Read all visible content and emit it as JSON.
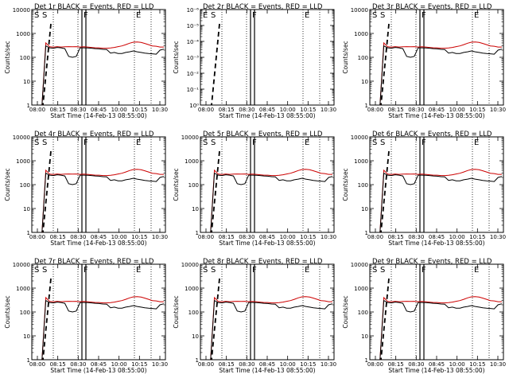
{
  "colors": {
    "events": "#000000",
    "lld": "#cc0000",
    "background": "#ffffff"
  },
  "chart_data": [
    {
      "type": "line",
      "title": "Det 1r BLACK = Events, RED = LLD",
      "xlabel": "Start Time (14-Feb-13 08:55:00)",
      "ylabel": "Counts/sec",
      "yscale": "log",
      "ylim": [
        1,
        10000
      ],
      "yticks": [
        "1",
        "10",
        "100",
        "1000",
        "10000"
      ],
      "xticks": [
        "08:00",
        "08:15",
        "08:30",
        "08:45",
        "10:00",
        "10:15",
        "10:30"
      ],
      "markers": [
        "S",
        "S",
        "F",
        "E"
      ],
      "events": [
        1,
        1,
        300,
        250,
        240,
        260,
        250,
        230,
        110,
        100,
        110,
        250,
        250,
        245,
        240,
        230,
        225,
        215,
        210,
        150,
        160,
        145,
        145,
        160,
        170,
        185,
        170,
        160,
        150,
        145,
        140,
        135,
        200,
        220
      ],
      "lld": [
        1,
        1,
        400,
        275,
        265,
        280,
        270,
        275,
        280,
        275,
        280,
        270,
        275,
        270,
        260,
        250,
        250,
        240,
        240,
        245,
        260,
        280,
        300,
        340,
        390,
        430,
        440,
        420,
        380,
        340,
        300,
        290,
        270,
        270
      ]
    },
    {
      "type": "line",
      "title": "Det 2r BLACK = Events, RED = LLD",
      "xlabel": "Start Time (14-Feb-13 08:55:00)",
      "ylabel": "Counts/sec",
      "yscale": "log",
      "ylim": [
        1,
        1e-06
      ],
      "yticks": [
        "10⁰",
        "10⁻¹",
        "10⁻²",
        "10⁻³",
        "10⁻⁴",
        "10⁻⁵",
        "10⁻⁶"
      ],
      "xticks": [
        "08:00",
        "08:15",
        "08:30",
        "08:45",
        "10:00",
        "10:15",
        "10:30"
      ],
      "markers": [
        "E",
        "S",
        "F",
        "E"
      ],
      "events": [],
      "lld": []
    },
    {
      "type": "line",
      "title": "Det 3r BLACK = Events, RED = LLD",
      "xlabel": "Start Time (14-Feb-13 08:55:00)",
      "ylabel": "Counts/sec",
      "yscale": "log",
      "ylim": [
        1,
        10000
      ],
      "yticks": [
        "1",
        "10",
        "100",
        "1000",
        "10000"
      ],
      "xticks": [
        "08:00",
        "08:15",
        "08:30",
        "08:45",
        "10:00",
        "10:15",
        "10:30"
      ],
      "markers": [
        "S",
        "S",
        "F",
        "E"
      ],
      "events": [
        1,
        1,
        300,
        250,
        240,
        260,
        250,
        230,
        110,
        100,
        110,
        250,
        250,
        245,
        240,
        230,
        225,
        215,
        210,
        150,
        160,
        145,
        145,
        160,
        170,
        185,
        170,
        160,
        150,
        145,
        140,
        135,
        200,
        220
      ],
      "lld": [
        1,
        1,
        400,
        275,
        265,
        280,
        270,
        275,
        280,
        275,
        280,
        270,
        275,
        270,
        260,
        250,
        250,
        240,
        240,
        245,
        260,
        280,
        300,
        340,
        390,
        430,
        440,
        420,
        380,
        340,
        300,
        290,
        270,
        270
      ]
    },
    {
      "type": "line",
      "title": "Det 4r BLACK = Events, RED = LLD",
      "xlabel": "Start Time (14-Feb-13 08:55:00)",
      "ylabel": "Counts/sec",
      "yscale": "log",
      "ylim": [
        1,
        10000
      ],
      "yticks": [
        "1",
        "10",
        "100",
        "1000",
        "10000"
      ],
      "xticks": [
        "08:00",
        "08:15",
        "08:30",
        "08:45",
        "10:00",
        "10:15",
        "10:30"
      ],
      "markers": [
        "S",
        "S",
        "F",
        "E"
      ],
      "events": [
        1,
        1,
        300,
        250,
        240,
        260,
        250,
        230,
        110,
        100,
        110,
        250,
        250,
        245,
        240,
        230,
        225,
        215,
        210,
        150,
        160,
        145,
        145,
        160,
        170,
        185,
        170,
        160,
        150,
        145,
        140,
        135,
        200,
        220
      ],
      "lld": [
        1,
        1,
        400,
        275,
        265,
        280,
        270,
        275,
        280,
        275,
        280,
        270,
        275,
        270,
        260,
        250,
        250,
        240,
        240,
        245,
        260,
        280,
        300,
        340,
        390,
        430,
        440,
        420,
        380,
        340,
        300,
        290,
        270,
        270
      ]
    },
    {
      "type": "line",
      "title": "Det 5r BLACK = Events, RED = LLD",
      "xlabel": "Start Time (14-Feb-13 08:55:00)",
      "ylabel": "Counts/sec",
      "yscale": "log",
      "ylim": [
        1,
        10000
      ],
      "yticks": [
        "1",
        "10",
        "100",
        "1000",
        "10000"
      ],
      "xticks": [
        "08:00",
        "08:15",
        "08:30",
        "08:45",
        "10:00",
        "10:15",
        "10:30"
      ],
      "markers": [
        "S",
        "S",
        "F",
        "E"
      ],
      "events": [
        1,
        1,
        300,
        250,
        240,
        260,
        250,
        230,
        110,
        100,
        110,
        250,
        250,
        245,
        240,
        230,
        225,
        215,
        210,
        150,
        160,
        145,
        145,
        160,
        170,
        185,
        170,
        160,
        150,
        145,
        140,
        135,
        200,
        220
      ],
      "lld": [
        1,
        1,
        400,
        275,
        265,
        280,
        270,
        275,
        280,
        275,
        280,
        270,
        275,
        270,
        260,
        250,
        250,
        240,
        240,
        245,
        260,
        280,
        300,
        340,
        390,
        430,
        440,
        420,
        380,
        340,
        300,
        290,
        270,
        270
      ]
    },
    {
      "type": "line",
      "title": "Det 6r BLACK = Events, RED = LLD",
      "xlabel": "Start Time (14-Feb-13 08:55:00)",
      "ylabel": "Counts/sec",
      "yscale": "log",
      "ylim": [
        1,
        10000
      ],
      "yticks": [
        "1",
        "10",
        "100",
        "1000",
        "10000"
      ],
      "xticks": [
        "08:00",
        "08:15",
        "08:30",
        "08:45",
        "10:00",
        "10:15",
        "10:30"
      ],
      "markers": [
        "S",
        "S",
        "F",
        "E"
      ],
      "events": [
        1,
        1,
        300,
        250,
        240,
        260,
        250,
        230,
        110,
        100,
        110,
        250,
        250,
        245,
        240,
        230,
        225,
        215,
        210,
        150,
        160,
        145,
        145,
        160,
        170,
        185,
        170,
        160,
        150,
        145,
        140,
        135,
        200,
        220
      ],
      "lld": [
        1,
        1,
        400,
        275,
        265,
        280,
        270,
        275,
        280,
        275,
        280,
        270,
        275,
        270,
        260,
        250,
        250,
        240,
        240,
        245,
        260,
        280,
        300,
        340,
        390,
        430,
        440,
        420,
        380,
        340,
        300,
        290,
        270,
        270
      ]
    },
    {
      "type": "line",
      "title": "Det 7r BLACK = Events, RED = LLD",
      "xlabel": "Start Time (14-Feb-13 08:55:00)",
      "ylabel": "Counts/sec",
      "yscale": "log",
      "ylim": [
        1,
        10000
      ],
      "yticks": [
        "1",
        "10",
        "100",
        "1000",
        "10000"
      ],
      "xticks": [
        "08:00",
        "08:15",
        "08:30",
        "08:45",
        "10:00",
        "10:15",
        "10:30"
      ],
      "markers": [
        "S",
        "S",
        "F",
        "E"
      ],
      "events": [
        1,
        1,
        300,
        250,
        240,
        260,
        250,
        230,
        110,
        100,
        110,
        250,
        250,
        245,
        240,
        230,
        225,
        215,
        210,
        150,
        160,
        145,
        145,
        160,
        170,
        185,
        170,
        160,
        150,
        145,
        140,
        135,
        200,
        220
      ],
      "lld": [
        1,
        1,
        400,
        275,
        265,
        280,
        270,
        275,
        280,
        275,
        280,
        270,
        275,
        270,
        260,
        250,
        250,
        240,
        240,
        245,
        260,
        280,
        300,
        340,
        390,
        430,
        440,
        420,
        380,
        340,
        300,
        290,
        270,
        270
      ]
    },
    {
      "type": "line",
      "title": "Det 8r BLACK = Events, RED = LLD",
      "xlabel": "Start Time (14-Feb-13 08:55:00)",
      "ylabel": "Counts/sec",
      "yscale": "log",
      "ylim": [
        1,
        10000
      ],
      "yticks": [
        "1",
        "10",
        "100",
        "1000",
        "10000"
      ],
      "xticks": [
        "08:00",
        "08:15",
        "08:30",
        "08:45",
        "10:00",
        "10:15",
        "10:30"
      ],
      "markers": [
        "S",
        "S",
        "F",
        "E"
      ],
      "events": [
        1,
        1,
        300,
        250,
        240,
        260,
        250,
        230,
        110,
        100,
        110,
        250,
        250,
        245,
        240,
        230,
        225,
        215,
        210,
        150,
        160,
        145,
        145,
        160,
        170,
        185,
        170,
        160,
        150,
        145,
        140,
        135,
        200,
        220
      ],
      "lld": [
        1,
        1,
        400,
        275,
        265,
        280,
        270,
        275,
        280,
        275,
        280,
        270,
        275,
        270,
        260,
        250,
        250,
        240,
        240,
        245,
        260,
        280,
        300,
        340,
        390,
        430,
        440,
        420,
        380,
        340,
        300,
        290,
        270,
        270
      ]
    },
    {
      "type": "line",
      "title": "Det 9r BLACK = Events, RED = LLD",
      "xlabel": "Start Time (14-Feb-13 08:55:00)",
      "ylabel": "Counts/sec",
      "yscale": "log",
      "ylim": [
        1,
        10000
      ],
      "yticks": [
        "1",
        "10",
        "100",
        "1000",
        "10000"
      ],
      "xticks": [
        "08:00",
        "08:15",
        "08:30",
        "08:45",
        "10:00",
        "10:15",
        "10:30"
      ],
      "markers": [
        "S",
        "S",
        "F",
        "E"
      ],
      "events": [
        1,
        1,
        300,
        250,
        240,
        260,
        250,
        230,
        110,
        100,
        110,
        250,
        250,
        245,
        240,
        230,
        225,
        215,
        210,
        150,
        160,
        145,
        145,
        160,
        170,
        185,
        170,
        160,
        150,
        145,
        140,
        135,
        200,
        220
      ],
      "lld": [
        1,
        1,
        400,
        275,
        265,
        280,
        270,
        275,
        280,
        275,
        280,
        270,
        275,
        270,
        260,
        250,
        250,
        240,
        240,
        245,
        260,
        280,
        300,
        340,
        390,
        430,
        440,
        420,
        380,
        340,
        300,
        290,
        270,
        270
      ]
    }
  ]
}
